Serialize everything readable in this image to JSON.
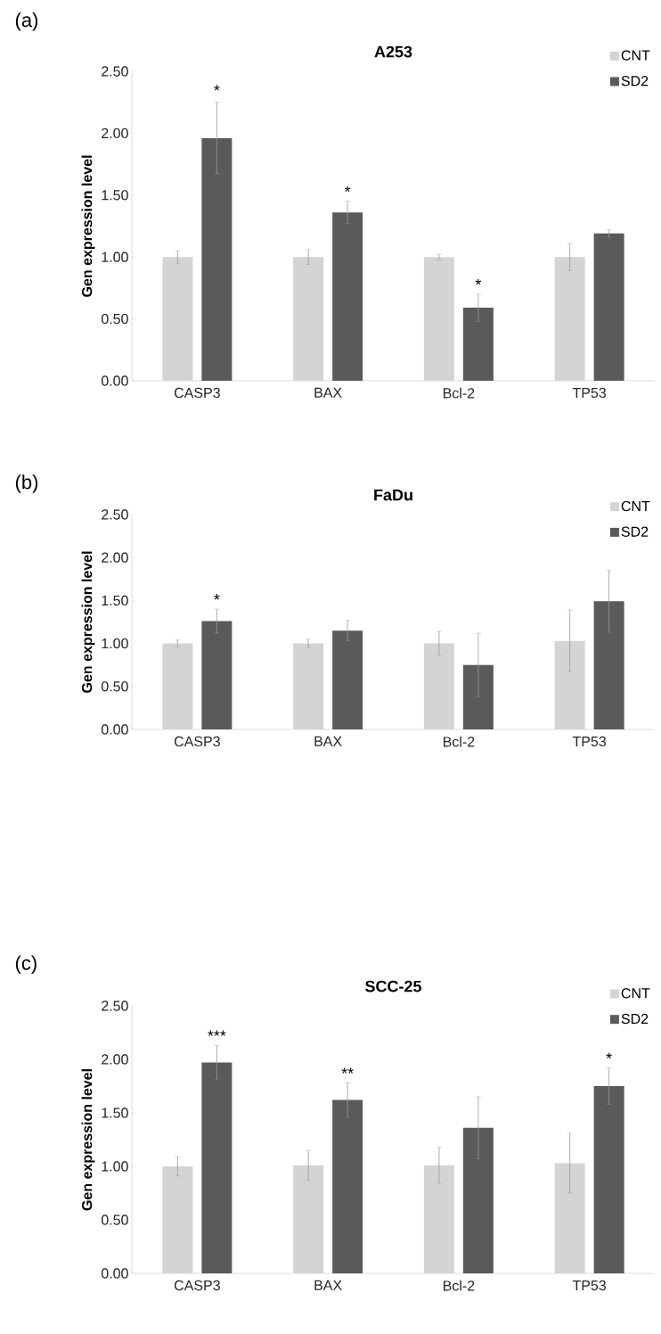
{
  "chart_data": [
    {
      "type": "bar",
      "title": "A253",
      "ylabel": "Gen expression level",
      "categories": [
        "CASP3",
        "BAX",
        "Bcl-2",
        "TP53"
      ],
      "series": [
        {
          "name": "CNT",
          "color": "#d4d4d4",
          "values": [
            1.0,
            1.0,
            1.0,
            1.0
          ],
          "errors": [
            0.05,
            0.06,
            0.02,
            0.11
          ]
        },
        {
          "name": "SD2",
          "color": "#5a5a5a",
          "values": [
            1.96,
            1.36,
            0.59,
            1.19
          ],
          "errors": [
            0.29,
            0.09,
            0.11,
            0.03
          ]
        }
      ],
      "ylim": [
        0,
        2.5
      ],
      "yticks": [
        {
          "value": 0,
          "label": "0.00"
        },
        {
          "value": 0.5,
          "label": "0.50"
        },
        {
          "value": 1,
          "label": "1.00"
        },
        {
          "value": 1.5,
          "label": "1.50"
        },
        {
          "value": 2,
          "label": "2.00"
        },
        {
          "value": 2.5,
          "label": "2.50"
        }
      ],
      "legend": "top right",
      "annotations": [
        "(a)",
        "*",
        {
          "text": "*",
          "x": "BAX",
          "y": 1.36
        },
        {
          "text": "*",
          "x": "Bcl-2",
          "y": 0.59
        }
      ]
    },
    {
      "type": "bar",
      "title": "FaDu",
      "ylabel": "Gen expression level",
      "categories": [
        "CASP3",
        "BAX",
        "Bcl-2",
        "TP53"
      ],
      "series": [
        {
          "name": "CNT",
          "color": "#d4d4d4",
          "values": [
            1.0,
            1.0,
            1.0,
            1.03
          ],
          "errors": [
            0.04,
            0.05,
            0.14,
            0.36
          ]
        },
        {
          "name": "SD2",
          "color": "#5a5a5a",
          "values": [
            1.26,
            1.15,
            0.75,
            1.49
          ],
          "errors": [
            0.14,
            0.12,
            0.37,
            0.36
          ]
        }
      ],
      "ylim": [
        0,
        2.5
      ],
      "yticks": [
        {
          "value": 0,
          "label": "0.00"
        },
        {
          "value": 0.5,
          "label": "0.50"
        },
        {
          "value": 1,
          "label": "1.00"
        },
        {
          "value": 1.5,
          "label": "1.50"
        },
        {
          "value": 2,
          "label": "2.00"
        },
        {
          "value": 2.5,
          "label": "2.50"
        }
      ],
      "legend": "top right",
      "annotations": [
        "(b)",
        {
          "text": "*",
          "x": "CASP3",
          "y": 1.26
        }
      ]
    },
    {
      "type": "bar",
      "title": "SCC-25",
      "ylabel": "Gen expression level",
      "categories": [
        "CASP3",
        "BAX",
        "Bcl-2",
        "TP53"
      ],
      "series": [
        {
          "name": "CNT",
          "color": "#d4d4d4",
          "values": [
            1.0,
            1.01,
            1.01,
            1.03
          ],
          "errors": [
            0.09,
            0.14,
            0.17,
            0.28
          ]
        },
        {
          "name": "SD2",
          "color": "#5a5a5a",
          "values": [
            1.97,
            1.62,
            1.36,
            1.75
          ],
          "errors": [
            0.16,
            0.16,
            0.29,
            0.17
          ]
        }
      ],
      "ylim": [
        0,
        2.5
      ],
      "yticks": [
        {
          "value": 0,
          "label": "0.00"
        },
        {
          "value": 0.5,
          "label": "0.50"
        },
        {
          "value": 1,
          "label": "1.00"
        },
        {
          "value": 1.5,
          "label": "1.50"
        },
        {
          "value": 2,
          "label": "2.00"
        },
        {
          "value": 2.5,
          "label": "2.50"
        }
      ],
      "legend": "top right",
      "annotations": [
        "(c)",
        {
          "text": "***",
          "x": "CASP3",
          "y": 1.97
        },
        {
          "text": "**",
          "x": "BAX",
          "y": 1.62
        },
        {
          "text": "*",
          "x": "TP53",
          "y": 1.75
        }
      ]
    }
  ]
}
